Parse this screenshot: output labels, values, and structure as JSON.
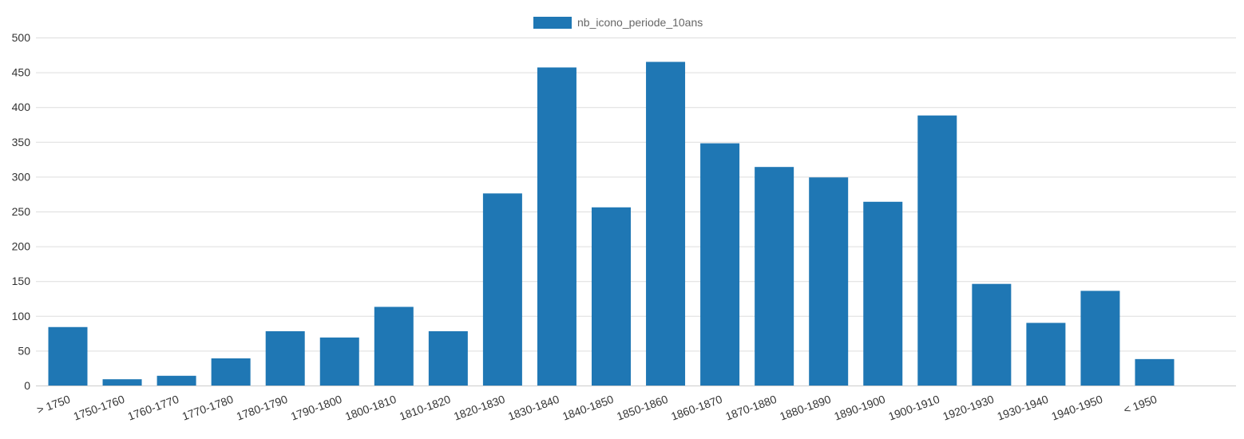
{
  "chart_data": {
    "type": "bar",
    "categories": [
      "> 1750",
      "1750-1760",
      "1760-1770",
      "1770-1780",
      "1780-1790",
      "1790-1800",
      "1800-1810",
      "1810-1820",
      "1820-1830",
      "1830-1840",
      "1840-1850",
      "1850-1860",
      "1860-1870",
      "1870-1880",
      "1880-1890",
      "1890-1900",
      "1900-1910",
      "1920-1930",
      "1930-1940",
      "1940-1950",
      "< 1950"
    ],
    "series": [
      {
        "name": "nb_icono_periode_10ans",
        "color": "#1f77b4",
        "values": [
          84,
          9,
          14,
          39,
          78,
          69,
          113,
          78,
          276,
          457,
          256,
          465,
          348,
          314,
          299,
          264,
          388,
          146,
          90,
          136,
          38
        ]
      }
    ],
    "yticks": [
      "0",
      "50",
      "100",
      "150",
      "200",
      "250",
      "300",
      "350",
      "400",
      "450",
      "500"
    ],
    "ylim": [
      0,
      500
    ],
    "grid": true,
    "legend_position": "top-center",
    "title": "",
    "xlabel": "",
    "ylabel": ""
  }
}
